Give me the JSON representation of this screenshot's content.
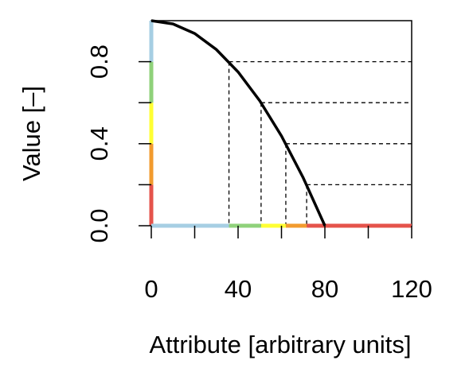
{
  "chart_data": {
    "type": "line",
    "x_label": "Attribute [arbitrary units]",
    "y_label": "Value [–]",
    "x": [
      0,
      10,
      20,
      30,
      40,
      50,
      60,
      70,
      80
    ],
    "values": [
      1,
      0.984,
      0.9375,
      0.859,
      0.75,
      0.609,
      0.4375,
      0.234,
      0
    ],
    "color": "#000000",
    "xlim": [
      0,
      120
    ],
    "ylim": [
      0,
      1
    ],
    "xticks": [
      0,
      40,
      80,
      120
    ],
    "xminor": [
      20,
      60,
      100
    ],
    "yticks": [
      {
        "value": 0,
        "label": "0.0"
      },
      {
        "value": 0.4,
        "label": "0.4"
      },
      {
        "value": 0.8,
        "label": "0.8"
      }
    ],
    "yminor": [
      0.2,
      0.6
    ],
    "reference_points": [
      {
        "x": 35.8,
        "y": 0.8
      },
      {
        "x": 50.6,
        "y": 0.6
      },
      {
        "x": 62,
        "y": 0.4
      },
      {
        "x": 71.6,
        "y": 0.2
      }
    ],
    "color_bands": [
      {
        "color": "#e5534b",
        "ylim": [
          0,
          0.2
        ],
        "xlim": [
          71.6,
          120
        ]
      },
      {
        "color": "#f29b2e",
        "ylim": [
          0.2,
          0.4
        ],
        "xlim": [
          62,
          71.6
        ]
      },
      {
        "color": "#ffff33",
        "ylim": [
          0.4,
          0.6
        ],
        "xlim": [
          50.6,
          62
        ]
      },
      {
        "color": "#8fd17a",
        "ylim": [
          0.6,
          0.8
        ],
        "xlim": [
          35.8,
          50.6
        ]
      },
      {
        "color": "#a6cee3",
        "ylim": [
          0.8,
          1
        ],
        "xlim": [
          0,
          35.8
        ]
      }
    ]
  }
}
